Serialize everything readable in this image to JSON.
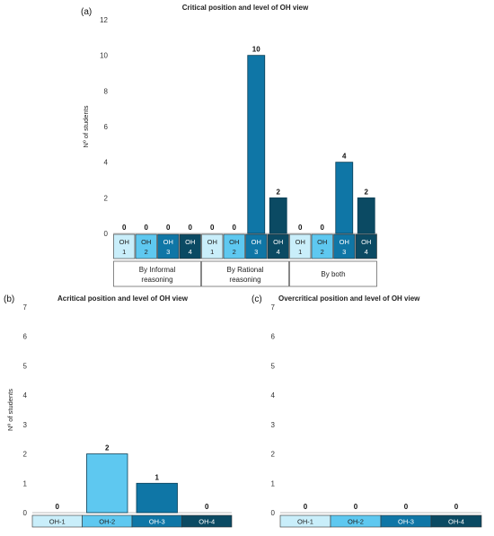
{
  "colors": {
    "OH-1": "#c9eefa",
    "OH-2": "#5ec8f0",
    "OH-3": "#0f76a6",
    "OH-4": "#0b4a63",
    "axis": "#bfbfbf"
  },
  "chart_data": [
    {
      "panel": "(a)",
      "type": "bar",
      "title": "Critical position and level of OH view",
      "ylabel": "Nº of students",
      "ylim": [
        0,
        12
      ],
      "yticks": [
        0,
        2,
        4,
        6,
        8,
        10,
        12
      ],
      "groups": [
        {
          "label": "By Informal reasoning",
          "categories": [
            {
              "line1": "OH",
              "line2": "1",
              "level": "OH-1"
            },
            {
              "line1": "OH",
              "line2": "2",
              "level": "OH-2"
            },
            {
              "line1": "OH",
              "line2": "3",
              "level": "OH-3"
            },
            {
              "line1": "OH",
              "line2": "4",
              "level": "OH-4"
            }
          ],
          "values": [
            0,
            0,
            0,
            0
          ]
        },
        {
          "label": "By Rational reasoning",
          "categories": [
            {
              "line1": "OH",
              "line2": "1",
              "level": "OH-1"
            },
            {
              "line1": "OH",
              "line2": "2",
              "level": "OH-2"
            },
            {
              "line1": "OH",
              "line2": "3",
              "level": "OH-3"
            },
            {
              "line1": "OH",
              "line2": "4",
              "level": "OH-4"
            }
          ],
          "values": [
            0,
            0,
            10,
            2
          ]
        },
        {
          "label": "By both",
          "categories": [
            {
              "line1": "OH",
              "line2": "1",
              "level": "OH-1"
            },
            {
              "line1": "OH",
              "line2": "2",
              "level": "OH-2"
            },
            {
              "line1": "OH",
              "line2": "3",
              "level": "OH-3"
            },
            {
              "line1": "OH",
              "line2": "4",
              "level": "OH-4"
            }
          ],
          "values": [
            0,
            0,
            4,
            2
          ]
        }
      ]
    },
    {
      "panel": "(b)",
      "type": "bar",
      "title": "Acritical position and level of OH view",
      "ylabel": "Nº of students",
      "ylim": [
        0,
        7
      ],
      "yticks": [
        0,
        1,
        2,
        3,
        4,
        5,
        6,
        7
      ],
      "categories": [
        "OH-1",
        "OH-2",
        "OH-3",
        "OH-4"
      ],
      "values": [
        0,
        2,
        1,
        0
      ]
    },
    {
      "panel": "(c)",
      "type": "bar",
      "title": "Overcritical position and level of OH view",
      "ylabel": "",
      "ylim": [
        0,
        7
      ],
      "yticks": [
        0,
        1,
        2,
        3,
        4,
        5,
        6,
        7
      ],
      "categories": [
        "OH-1",
        "OH-2",
        "OH-3",
        "OH-4"
      ],
      "values": [
        0,
        0,
        0,
        0
      ]
    }
  ]
}
